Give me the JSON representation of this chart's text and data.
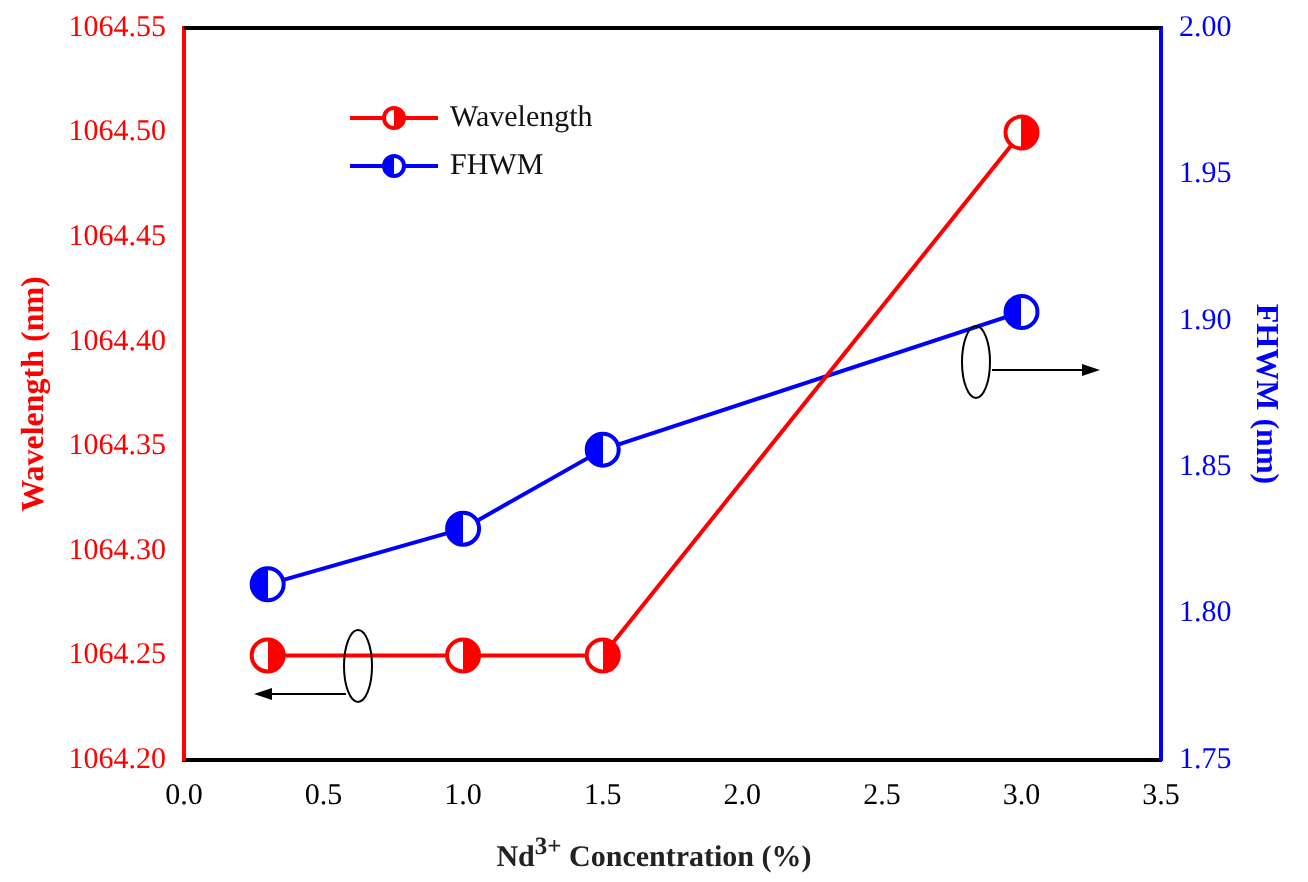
{
  "chart_data": {
    "type": "line",
    "xlabel": "Nd$^{3+}$ Concentration (%)",
    "ylabel": "Wavelength (nm)",
    "y2label": "FHWM (nm)",
    "x": [
      0.3,
      1.0,
      1.5,
      3.0
    ],
    "series": [
      {
        "name": "Wavelength",
        "color": "#ff0000",
        "values": [
          1064.25,
          1064.25,
          1064.25,
          1064.5
        ]
      },
      {
        "name": "FHWM",
        "color": "#0000ff",
        "axis": "y2",
        "values": [
          1.81,
          1.829,
          1.856,
          1.903
        ]
      }
    ],
    "xlim": [
      0,
      3.5
    ],
    "xticks": [
      {
        "value": 0,
        "label": "0.0"
      },
      {
        "value": 0.5,
        "label": "0.5"
      },
      {
        "value": 1,
        "label": "1.0"
      },
      {
        "value": 1.5,
        "label": "1.5"
      },
      {
        "value": 2,
        "label": "2.0"
      },
      {
        "value": 2.5,
        "label": "2.5"
      },
      {
        "value": 3,
        "label": "3.0"
      },
      {
        "value": 3.5,
        "label": "3.5"
      }
    ],
    "ylim": [
      1064.2,
      1064.55
    ],
    "yticks": [
      {
        "value": 1064.2,
        "label": "1064.20"
      },
      {
        "value": 1064.25,
        "label": "1064.25"
      },
      {
        "value": 1064.3,
        "label": "1064.30"
      },
      {
        "value": 1064.35,
        "label": "1064.35"
      },
      {
        "value": 1064.4,
        "label": "1064.40"
      },
      {
        "value": 1064.45,
        "label": "1064.45"
      },
      {
        "value": 1064.5,
        "label": "1064.50"
      },
      {
        "value": 1064.55,
        "label": "1064.55"
      }
    ],
    "y2lim": [
      1.75,
      2.0
    ],
    "y2ticks": [
      {
        "value": 1.75,
        "label": "1.75"
      },
      {
        "value": 1.8,
        "label": "1.80"
      },
      {
        "value": 1.85,
        "label": "1.85"
      },
      {
        "value": 1.9,
        "label": "1.90"
      },
      {
        "value": 1.95,
        "label": "1.95"
      },
      {
        "value": 2.0,
        "label": "2.00"
      }
    ],
    "legend": "top left",
    "marker": "circle",
    "line_style": "solid",
    "grid": false
  }
}
